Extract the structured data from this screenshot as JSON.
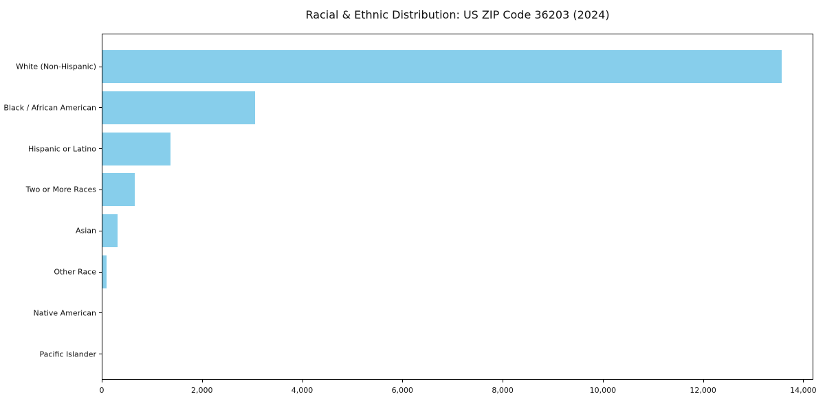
{
  "title": "Racial & Ethnic Distribution: US ZIP Code 36203 (2024)",
  "chart_data": {
    "type": "bar",
    "orientation": "horizontal",
    "title": "Racial & Ethnic Distribution: US ZIP Code 36203 (2024)",
    "categories": [
      "White (Non-Hispanic)",
      "Black / African American",
      "Hispanic or Latino",
      "Two or More Races",
      "Asian",
      "Other Race",
      "Native American",
      "Pacific Islander"
    ],
    "values": [
      13550,
      3040,
      1360,
      640,
      300,
      80,
      0,
      0
    ],
    "xlabel": "",
    "ylabel": "",
    "xlim": [
      0,
      14200
    ],
    "xticks": [
      0,
      2000,
      4000,
      6000,
      8000,
      10000,
      12000,
      14000
    ],
    "xtick_labels": [
      "0",
      "2,000",
      "4,000",
      "6,000",
      "8,000",
      "10,000",
      "12,000",
      "14,000"
    ],
    "grid": false,
    "bar_color": "#87CEEB",
    "spine_color": "#000000",
    "text_color": "#111111",
    "background_color": "#ffffff"
  }
}
